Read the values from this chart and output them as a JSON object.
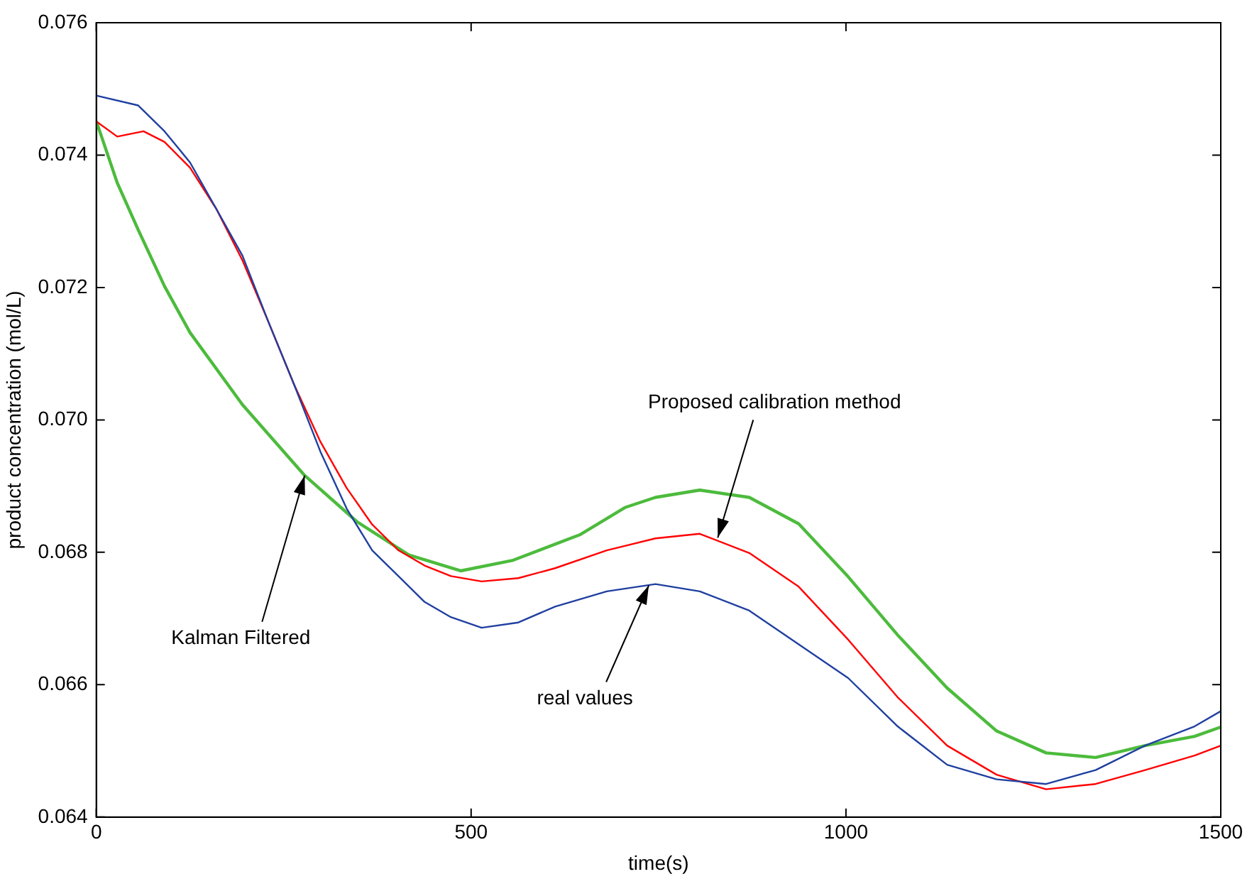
{
  "chart_data": {
    "type": "line",
    "xlabel": "time(s)",
    "ylabel": "product concentration (mol/L)",
    "series": [
      {
        "color": "#2040a0",
        "x": [
          0,
          56,
          91,
          125,
          160,
          195,
          230,
          264,
          299,
          334,
          368,
          403,
          438,
          473,
          514,
          563,
          612,
          681,
          746,
          805,
          871,
          937,
          1003,
          1069,
          1135,
          1201,
          1267,
          1333,
          1399,
          1465,
          1500
        ],
        "values": [
          0.0749,
          0.07475,
          0.07436,
          0.07389,
          0.07319,
          0.07248,
          0.07147,
          0.07053,
          0.06952,
          0.06866,
          0.06803,
          0.06764,
          0.06725,
          0.06702,
          0.06686,
          0.06694,
          0.06718,
          0.06741,
          0.06752,
          0.06741,
          0.06712,
          0.06661,
          0.0661,
          0.06537,
          0.06479,
          0.06457,
          0.0645,
          0.06471,
          0.06508,
          0.06537,
          0.0656
        ]
      },
      {
        "color": "#ff0000",
        "x": [
          0,
          28,
          63,
          91,
          125,
          160,
          195,
          230,
          264,
          299,
          334,
          368,
          403,
          438,
          473,
          514,
          563,
          612,
          681,
          746,
          805,
          871,
          937,
          1003,
          1069,
          1135,
          1201,
          1267,
          1333,
          1399,
          1465,
          1500
        ],
        "values": [
          0.07451,
          0.07428,
          0.07436,
          0.0742,
          0.07381,
          0.07319,
          0.07241,
          0.07147,
          0.07053,
          0.06967,
          0.06897,
          0.06842,
          0.06803,
          0.0678,
          0.06764,
          0.06756,
          0.06761,
          0.06776,
          0.06803,
          0.06821,
          0.06828,
          0.06799,
          0.06748,
          0.06668,
          0.06581,
          0.06508,
          0.06464,
          0.06442,
          0.0645,
          0.06471,
          0.06493,
          0.06508
        ]
      },
      {
        "color": "#4cbb3c",
        "x": [
          0,
          7,
          28,
          56,
          91,
          125,
          195,
          278,
          348,
          417,
          486,
          556,
          646,
          706,
          746,
          805,
          871,
          937,
          1003,
          1069,
          1135,
          1201,
          1267,
          1333,
          1399,
          1465,
          1500
        ],
        "values": [
          0.07451,
          0.07428,
          0.07358,
          0.07287,
          0.07202,
          0.07132,
          0.07023,
          0.06916,
          0.06846,
          0.06796,
          0.06772,
          0.06788,
          0.06827,
          0.06868,
          0.06883,
          0.06894,
          0.06883,
          0.06843,
          0.06763,
          0.06675,
          0.06595,
          0.0653,
          0.06497,
          0.0649,
          0.06508,
          0.06522,
          0.06536
        ]
      }
    ],
    "xlim": [
      0,
      1500
    ],
    "xticks": [
      0,
      500,
      1000,
      1500
    ],
    "ylim": [
      0.064,
      0.076
    ],
    "yticks": [
      0.064,
      0.066,
      0.068,
      {
        "value": 0.07,
        "label": "0.070"
      },
      0.072,
      0.074,
      0.076
    ],
    "grid": false,
    "legend": false,
    "marker": "none",
    "line_style": "solid",
    "annotations": [
      {
        "text": "Kalman Filtered",
        "x": 278,
        "y": 0.06916
      },
      {
        "text": "Proposed calibration method",
        "x": 829,
        "y": 0.06822
      },
      {
        "text": "real values",
        "x": 737,
        "y": 0.0675
      }
    ]
  }
}
